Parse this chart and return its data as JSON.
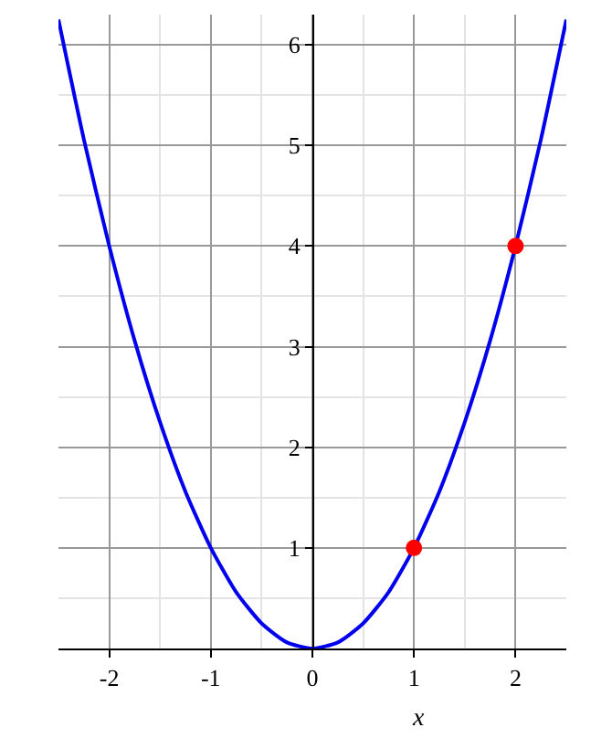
{
  "chart_data": {
    "type": "line",
    "xlabel": "x",
    "xlim": [
      -2.5,
      2.5
    ],
    "ylim": [
      0,
      6.3
    ],
    "xticks": [
      -2,
      -1,
      0,
      1,
      2
    ],
    "yticks": [
      1,
      2,
      3,
      4,
      5,
      6
    ],
    "grid": true,
    "series": [
      {
        "color": "#0000ee",
        "marker": "none",
        "x": [
          -2.5,
          -2.25,
          -2,
          -1.75,
          -1.5,
          -1.25,
          -1,
          -0.75,
          -0.5,
          -0.25,
          0,
          0.25,
          0.5,
          0.75,
          1,
          1.25,
          1.5,
          1.75,
          2,
          2.25,
          2.5
        ],
        "values": [
          6.25,
          5.06,
          4,
          3.06,
          2.25,
          1.56,
          1,
          0.56,
          0.25,
          0.06,
          0,
          0.06,
          0.25,
          0.56,
          1,
          1.56,
          2.25,
          3.06,
          4,
          5.06,
          6.25
        ]
      },
      {
        "type": "scatter",
        "color": "#ff0000",
        "marker": "circle",
        "x": [
          1,
          2
        ],
        "values": [
          1,
          4
        ]
      }
    ]
  }
}
